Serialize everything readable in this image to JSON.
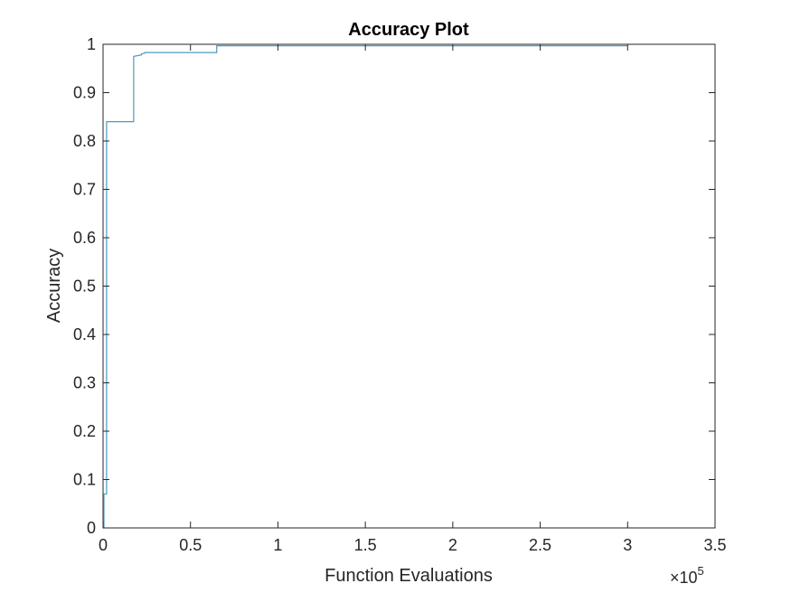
{
  "chart_data": {
    "type": "line",
    "title": "Accuracy Plot",
    "xlabel": "Function Evaluations",
    "ylabel": "Accuracy",
    "x_exponent_base": "10",
    "x_exponent_power": "5",
    "x_exponent_prefix": "×",
    "xlim": [
      0,
      3.5
    ],
    "ylim": [
      0,
      1
    ],
    "xticks": [
      0,
      0.5,
      1,
      1.5,
      2,
      2.5,
      3,
      3.5
    ],
    "xtick_labels": [
      "0",
      "0.5",
      "1",
      "1.5",
      "2",
      "2.5",
      "3",
      "3.5"
    ],
    "yticks": [
      0,
      0.1,
      0.2,
      0.3,
      0.4,
      0.5,
      0.6,
      0.7,
      0.8,
      0.9,
      1
    ],
    "ytick_labels": [
      "0",
      "0.1",
      "0.2",
      "0.3",
      "0.4",
      "0.5",
      "0.6",
      "0.7",
      "0.8",
      "0.9",
      "1"
    ],
    "grid": false,
    "line_color": "#4e9abf",
    "series": [
      {
        "x": [
          0,
          0.005,
          0.005,
          0.02,
          0.02,
          0.175,
          0.175,
          0.22,
          0.22,
          0.24,
          0.24,
          0.65,
          0.65,
          3.0
        ],
        "y": [
          0,
          0,
          0.07,
          0.07,
          0.84,
          0.84,
          0.975,
          0.978,
          0.98,
          0.982,
          0.983,
          0.983,
          0.997,
          0.997
        ]
      }
    ]
  }
}
